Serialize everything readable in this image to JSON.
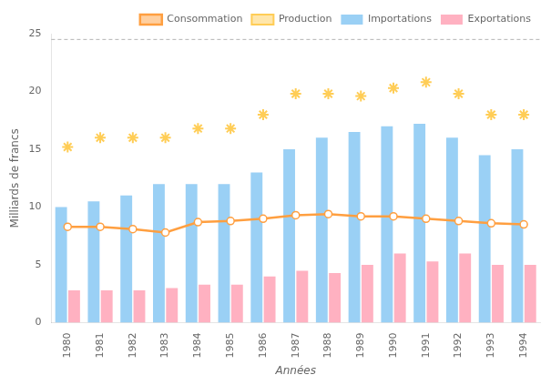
{
  "chart_data": {
    "type": "bar",
    "xlabel": "Années",
    "ylabel": "Milliards de francs",
    "categories": [
      "1980",
      "1981",
      "1982",
      "1983",
      "1984",
      "1985",
      "1986",
      "1987",
      "1988",
      "1989",
      "1990",
      "1991",
      "1992",
      "1993",
      "1994"
    ],
    "series": [
      {
        "name": "Importations",
        "type": "bar",
        "values": [
          10.0,
          10.5,
          11.0,
          12.0,
          12.0,
          12.0,
          13.0,
          15.0,
          16.0,
          16.5,
          17.0,
          17.2,
          16.0,
          14.5,
          15.0
        ]
      },
      {
        "name": "Exportations",
        "type": "bar",
        "values": [
          2.8,
          2.8,
          2.8,
          3.0,
          3.3,
          3.3,
          4.0,
          4.5,
          4.3,
          5.0,
          6.0,
          5.3,
          6.0,
          5.0,
          5.0
        ]
      },
      {
        "name": "Consommation",
        "type": "line",
        "marker": "circle",
        "line_style": "solid",
        "values": [
          8.3,
          8.3,
          8.1,
          7.8,
          8.7,
          8.8,
          9.0,
          9.3,
          9.4,
          9.2,
          9.2,
          9.0,
          8.8,
          8.6,
          8.5
        ]
      },
      {
        "name": "Production",
        "type": "line",
        "marker": "star",
        "line_style": "none",
        "values": [
          15.2,
          16.0,
          16.0,
          16.0,
          16.8,
          16.8,
          18.0,
          19.8,
          19.8,
          19.6,
          20.3,
          20.8,
          19.8,
          18.0,
          18.0
        ]
      }
    ],
    "reference_line": 24.5,
    "ylim": [
      0,
      25
    ],
    "yticks": [
      0,
      5,
      10,
      15,
      20,
      25
    ],
    "grid": false,
    "legend": "upper right"
  }
}
